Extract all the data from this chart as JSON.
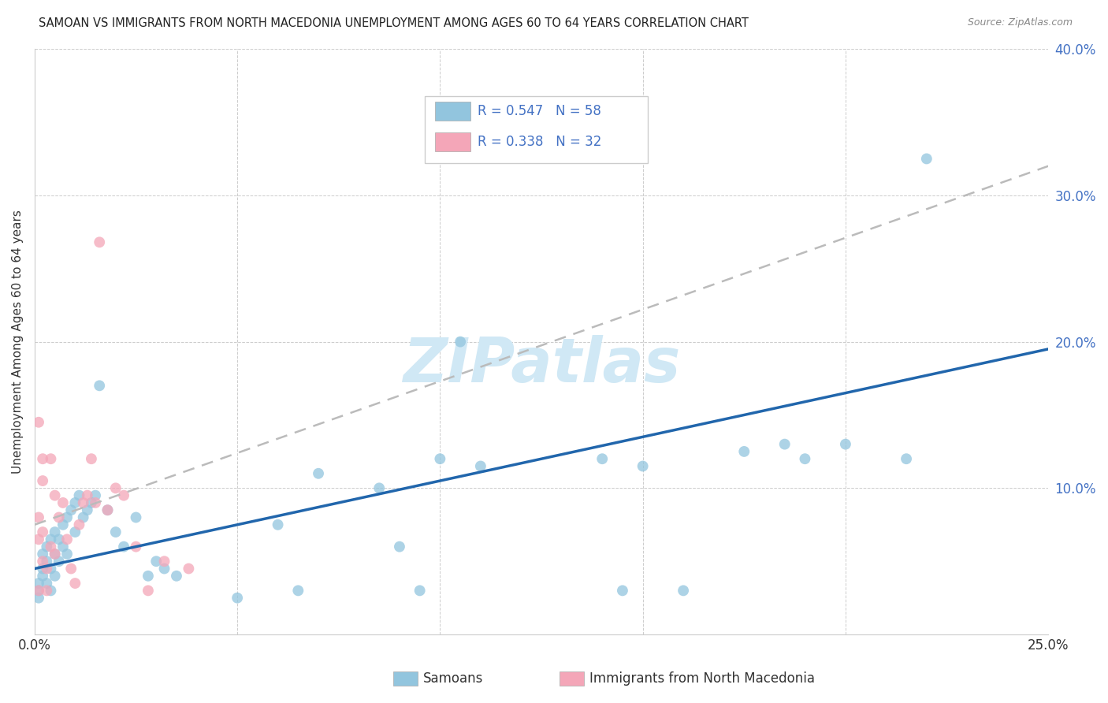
{
  "title": "SAMOAN VS IMMIGRANTS FROM NORTH MACEDONIA UNEMPLOYMENT AMONG AGES 60 TO 64 YEARS CORRELATION CHART",
  "source": "Source: ZipAtlas.com",
  "ylabel": "Unemployment Among Ages 60 to 64 years",
  "label_samoans": "Samoans",
  "label_macedonians": "Immigrants from North Macedonia",
  "xmin": 0.0,
  "xmax": 0.25,
  "ymin": 0.0,
  "ymax": 0.4,
  "xticks": [
    0.0,
    0.05,
    0.1,
    0.15,
    0.2,
    0.25
  ],
  "yticks": [
    0.0,
    0.1,
    0.2,
    0.3,
    0.4
  ],
  "R_samoans": 0.547,
  "N_samoans": 58,
  "R_macedonians": 0.338,
  "N_macedonians": 32,
  "color_samoans": "#92c5de",
  "color_macedonians": "#f4a6b8",
  "color_samoans_line": "#2166ac",
  "color_macedonians_line": "#bbbbbb",
  "watermark_color": "#d0e8f5",
  "samoans_x": [
    0.001,
    0.001,
    0.001,
    0.002,
    0.002,
    0.002,
    0.003,
    0.003,
    0.003,
    0.004,
    0.004,
    0.004,
    0.005,
    0.005,
    0.005,
    0.006,
    0.006,
    0.007,
    0.007,
    0.008,
    0.008,
    0.009,
    0.01,
    0.01,
    0.011,
    0.012,
    0.013,
    0.014,
    0.015,
    0.016,
    0.018,
    0.02,
    0.022,
    0.025,
    0.028,
    0.03,
    0.032,
    0.035,
    0.05,
    0.06,
    0.065,
    0.07,
    0.085,
    0.09,
    0.095,
    0.1,
    0.105,
    0.11,
    0.14,
    0.145,
    0.15,
    0.16,
    0.175,
    0.185,
    0.19,
    0.2,
    0.215,
    0.22
  ],
  "samoans_y": [
    0.03,
    0.025,
    0.035,
    0.055,
    0.04,
    0.045,
    0.05,
    0.06,
    0.035,
    0.065,
    0.045,
    0.03,
    0.07,
    0.055,
    0.04,
    0.065,
    0.05,
    0.075,
    0.06,
    0.08,
    0.055,
    0.085,
    0.09,
    0.07,
    0.095,
    0.08,
    0.085,
    0.09,
    0.095,
    0.17,
    0.085,
    0.07,
    0.06,
    0.08,
    0.04,
    0.05,
    0.045,
    0.04,
    0.025,
    0.075,
    0.03,
    0.11,
    0.1,
    0.06,
    0.03,
    0.12,
    0.2,
    0.115,
    0.12,
    0.03,
    0.115,
    0.03,
    0.125,
    0.13,
    0.12,
    0.13,
    0.12,
    0.325
  ],
  "macedonians_x": [
    0.001,
    0.001,
    0.001,
    0.001,
    0.002,
    0.002,
    0.002,
    0.002,
    0.003,
    0.003,
    0.004,
    0.004,
    0.005,
    0.005,
    0.006,
    0.007,
    0.008,
    0.009,
    0.01,
    0.011,
    0.012,
    0.013,
    0.014,
    0.015,
    0.016,
    0.018,
    0.02,
    0.022,
    0.025,
    0.028,
    0.032,
    0.038
  ],
  "macedonians_y": [
    0.145,
    0.08,
    0.065,
    0.03,
    0.12,
    0.105,
    0.07,
    0.05,
    0.045,
    0.03,
    0.12,
    0.06,
    0.095,
    0.055,
    0.08,
    0.09,
    0.065,
    0.045,
    0.035,
    0.075,
    0.09,
    0.095,
    0.12,
    0.09,
    0.268,
    0.085,
    0.1,
    0.095,
    0.06,
    0.03,
    0.05,
    0.045
  ],
  "sam_line_x0": 0.0,
  "sam_line_y0": 0.045,
  "sam_line_x1": 0.25,
  "sam_line_y1": 0.195,
  "mac_line_x0": 0.0,
  "mac_line_y0": 0.075,
  "mac_line_x1": 0.25,
  "mac_line_y1": 0.32
}
